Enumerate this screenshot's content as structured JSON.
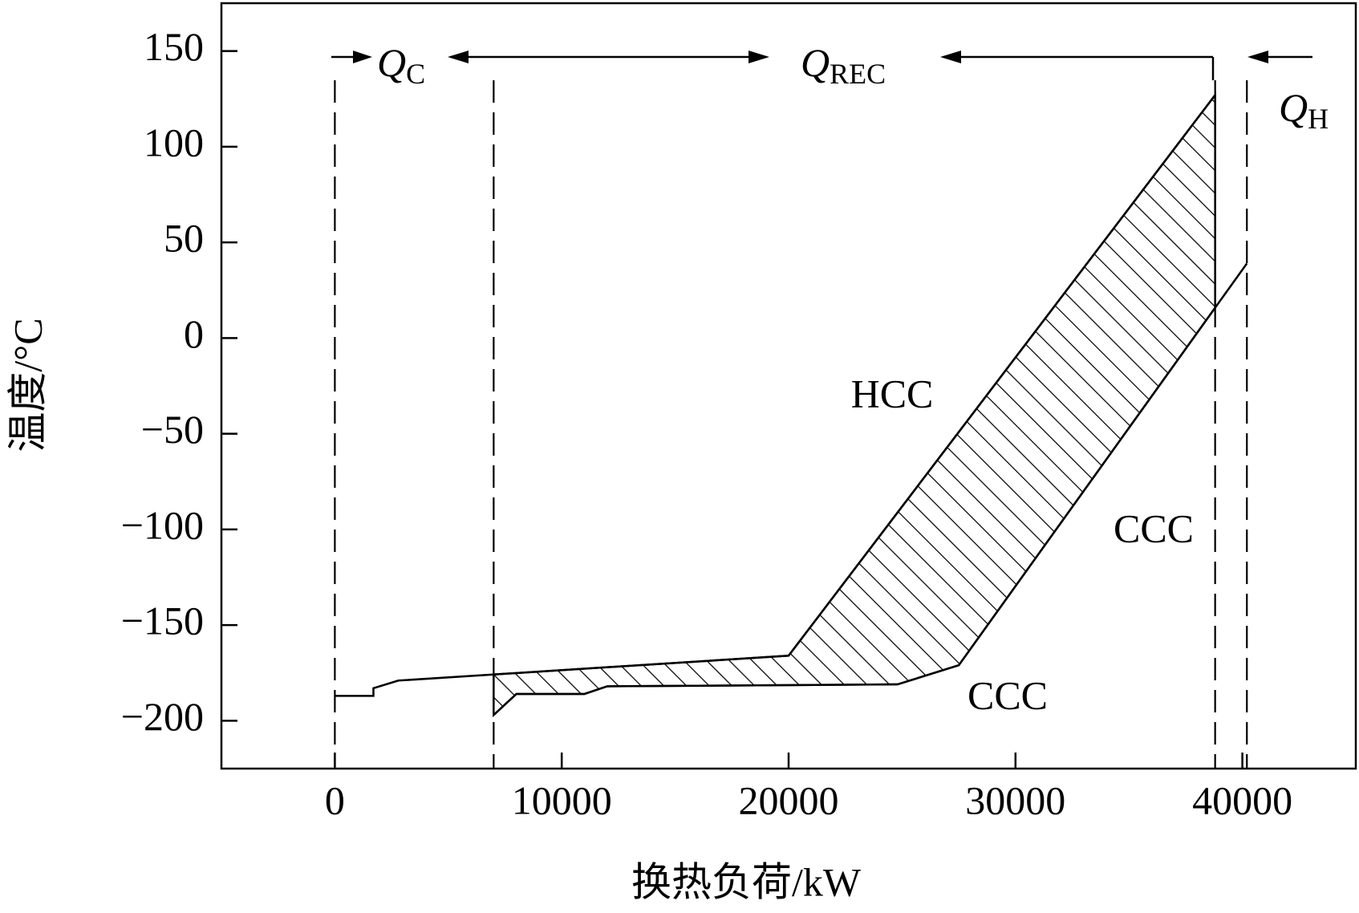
{
  "chart_data": {
    "type": "line",
    "x_label": "换热负荷/kW",
    "y_label": "温度/°C",
    "xlim": [
      -5000,
      45000
    ],
    "ylim": [
      -225,
      175
    ],
    "xticks": [
      0,
      10000,
      20000,
      30000,
      40000
    ],
    "yticks": [
      150,
      100,
      50,
      0,
      {
        "value": -50,
        "label": "−50"
      },
      {
        "value": -100,
        "label": "−100"
      },
      {
        "value": -150,
        "label": "−150"
      },
      {
        "value": -200,
        "label": "−200"
      }
    ],
    "series": [
      {
        "name": "HCC",
        "color": "#000000",
        "x": [
          0,
          1700,
          1700,
          2800,
          20000,
          38800
        ],
        "values": [
          -187,
          -187,
          -183,
          -179,
          -166,
          127
        ]
      },
      {
        "name": "CCC",
        "color": "#000000",
        "x": [
          7000,
          8000,
          11000,
          12000,
          24800,
          27500,
          40200
        ],
        "values": [
          -197,
          -186,
          -186,
          -182,
          -181,
          -171,
          39
        ]
      }
    ],
    "boundaries": [
      0,
      7000,
      38800,
      40200
    ],
    "annotations": [
      {
        "symbol": "Q",
        "sub": "C"
      },
      {
        "symbol": "Q",
        "sub": "REC"
      },
      {
        "symbol": "Q",
        "sub": "H"
      },
      "HCC",
      "CCC",
      "CCC"
    ]
  }
}
